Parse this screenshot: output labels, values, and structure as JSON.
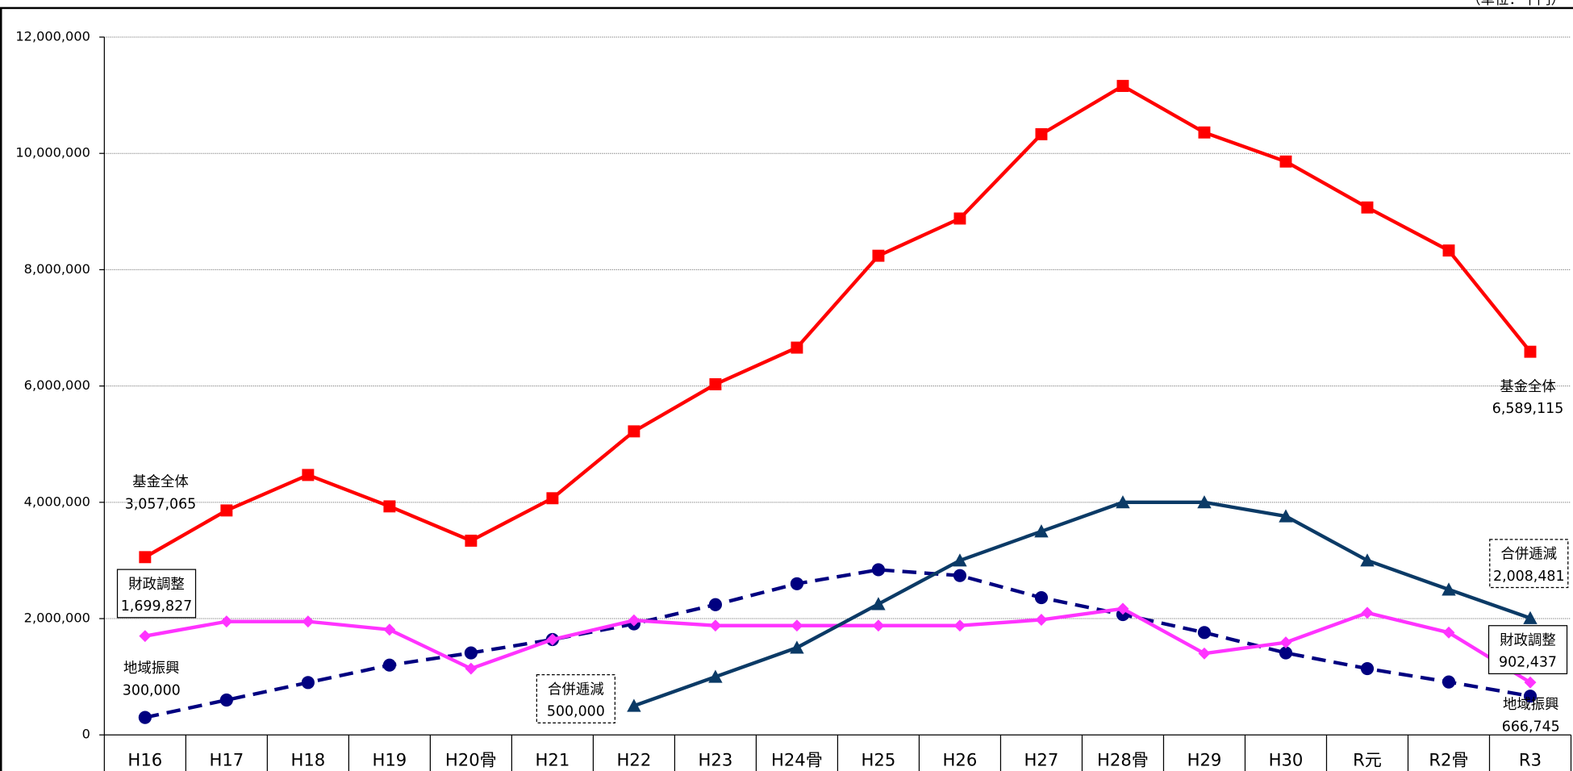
{
  "chart_data": {
    "type": "line",
    "unit": "（単位：千円）",
    "categories": [
      "H16",
      "H17",
      "H18",
      "H19",
      "H20骨",
      "H21",
      "H22",
      "H23",
      "H24骨",
      "H25",
      "H26",
      "H27",
      "H28骨",
      "H29",
      "H30",
      "R元",
      "R2骨",
      "R3"
    ],
    "ylim": [
      0,
      12000000
    ],
    "yticks": [
      0,
      {
        "value": 2000000,
        "label": "2,000,000"
      },
      {
        "value": 4000000,
        "label": "4,000,000"
      },
      {
        "value": 6000000,
        "label": "6,000,000"
      },
      {
        "value": 8000000,
        "label": "8,000,000"
      },
      {
        "value": 10000000,
        "label": "10,000,000"
      },
      {
        "value": 12000000,
        "label": "12,000,000"
      }
    ],
    "grid": true,
    "series": [
      {
        "name": "基金全体",
        "color": "#ff0000",
        "marker": "square",
        "dashed": false,
        "values": [
          3057065,
          3860000,
          4470000,
          3930000,
          3340000,
          4070000,
          5220000,
          6030000,
          6660000,
          8240000,
          8880000,
          10330000,
          11160000,
          10360000,
          9860000,
          9070000,
          8330000,
          6589115
        ],
        "value_labels": [
          "3,057,065",
          null,
          null,
          null,
          null,
          null,
          null,
          null,
          null,
          null,
          null,
          null,
          null,
          null,
          null,
          null,
          null,
          "6,589,115"
        ]
      },
      {
        "name": "合併逓減",
        "color": "#0b3a66",
        "marker": "triangle",
        "dashed": false,
        "values": [
          null,
          null,
          null,
          null,
          null,
          null,
          500000,
          1000000,
          1500000,
          2250000,
          3000000,
          3500000,
          4000000,
          4000000,
          3760000,
          3000000,
          2500000,
          2008481
        ],
        "value_labels": [
          null,
          null,
          null,
          null,
          null,
          null,
          "500,000",
          null,
          null,
          null,
          null,
          null,
          null,
          null,
          null,
          null,
          null,
          "2,008,481"
        ]
      },
      {
        "name": "財政調整",
        "color": "#ff33ff",
        "marker": "diamond",
        "dashed": false,
        "values": [
          1699827,
          1950000,
          1950000,
          1810000,
          1140000,
          1640000,
          1970000,
          1880000,
          1880000,
          1880000,
          1880000,
          1980000,
          2170000,
          1400000,
          1590000,
          2100000,
          1760000,
          902437
        ],
        "value_labels": [
          "1,699,827",
          null,
          null,
          null,
          null,
          null,
          null,
          null,
          null,
          null,
          null,
          null,
          null,
          null,
          null,
          null,
          null,
          "902,437"
        ]
      },
      {
        "name": "地域振興",
        "color": "#000080",
        "marker": "circle",
        "dashed": true,
        "values": [
          300000,
          600000,
          900000,
          1200000,
          1410000,
          1640000,
          1910000,
          2240000,
          2600000,
          2840000,
          2740000,
          2360000,
          2070000,
          1760000,
          1410000,
          1140000,
          910000,
          666745
        ],
        "value_labels": [
          "300,000",
          null,
          null,
          null,
          null,
          null,
          null,
          null,
          null,
          null,
          null,
          null,
          null,
          null,
          null,
          null,
          null,
          "666,745"
        ]
      }
    ]
  }
}
